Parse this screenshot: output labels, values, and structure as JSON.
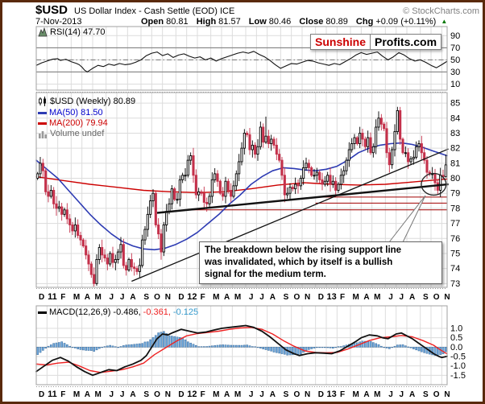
{
  "header": {
    "symbol": "$USD",
    "title": "US Dollar Index - Cash Settle (EOD) ICE",
    "copyright": "© StockCharts.com",
    "date": "7-Nov-2013",
    "quote": {
      "open_label": "Open",
      "open": "80.81",
      "high_label": "High",
      "high": "81.57",
      "low_label": "Low",
      "low": "80.46",
      "close_label": "Close",
      "close": "80.89",
      "chg_label": "Chg",
      "chg": "+0.09 (+0.11%)",
      "direction_symbol": "▲"
    }
  },
  "watermark": {
    "brand": "Sunshine",
    "suffix": "Profits.com"
  },
  "annotation": {
    "line1": "The breakdown below the rising support line",
    "line2": "was invalidated, which by itself is a bullish",
    "line3": "signal for the medium term."
  },
  "colors": {
    "frame_border": "#5A2A0C",
    "grid": "#DCDCDC",
    "panel_border": "#A0A0A0",
    "candle_down": "#C4314B",
    "candle_up_fill": "#FFFFFF",
    "candle_up_stroke": "#000000",
    "ma50": "#2D3BB3",
    "ma50_text": "#0000CC",
    "ma200": "#CC0000",
    "signal": "#EE2222",
    "hist_fill": "#6FA8DC",
    "hist_stroke": "#3D6E9E",
    "macd_value3": "#3399CC",
    "brand_red": "#CC0000",
    "up_green": "#007700",
    "support": "#A00000",
    "volume_gray": "#888888"
  },
  "x_axis": {
    "months": [
      "D",
      "11",
      "F",
      "M",
      "A",
      "M",
      "J",
      "J",
      "A",
      "S",
      "O",
      "N",
      "D",
      "12",
      "F",
      "M",
      "A",
      "M",
      "J",
      "J",
      "A",
      "S",
      "O",
      "N",
      "D",
      "13",
      "F",
      "M",
      "A",
      "M",
      "J",
      "J",
      "A",
      "S",
      "O",
      "N"
    ],
    "bold_indices": [
      1,
      13,
      25
    ],
    "month_start_weeks": [
      0,
      4,
      8,
      13,
      17,
      21,
      26,
      30,
      34,
      39,
      43,
      47,
      52,
      56,
      60,
      65,
      69,
      73,
      78,
      82,
      86,
      91,
      95,
      99,
      104,
      108,
      112,
      117,
      121,
      125,
      130,
      134,
      138,
      143,
      147,
      151
    ],
    "total_weeks": 153
  },
  "chart_data": [
    {
      "type": "line",
      "name": "RSI",
      "legend": "RSI(14) 47.70",
      "y_ticks": [
        90,
        70,
        50,
        30,
        10
      ],
      "bands": {
        "overbought": 70,
        "midline": 50,
        "oversold": 30
      },
      "y_range": [
        0,
        105
      ],
      "points": [
        [
          0,
          41
        ],
        [
          2,
          45
        ],
        [
          4,
          48
        ],
        [
          6,
          51
        ],
        [
          8,
          52
        ],
        [
          9,
          49
        ],
        [
          11,
          51
        ],
        [
          13,
          47
        ],
        [
          15,
          44
        ],
        [
          16,
          42
        ],
        [
          17,
          38
        ],
        [
          18,
          33
        ],
        [
          19,
          30
        ],
        [
          21,
          36
        ],
        [
          23,
          41
        ],
        [
          25,
          39
        ],
        [
          27,
          43
        ],
        [
          29,
          41
        ],
        [
          31,
          44
        ],
        [
          33,
          42
        ],
        [
          35,
          43
        ],
        [
          37,
          46
        ],
        [
          39,
          50
        ],
        [
          41,
          57
        ],
        [
          43,
          61
        ],
        [
          45,
          63
        ],
        [
          47,
          57
        ],
        [
          49,
          60
        ],
        [
          51,
          54
        ],
        [
          53,
          58
        ],
        [
          55,
          60
        ],
        [
          57,
          56
        ],
        [
          59,
          53
        ],
        [
          61,
          55
        ],
        [
          63,
          50
        ],
        [
          65,
          53
        ],
        [
          67,
          48
        ],
        [
          69,
          52
        ],
        [
          71,
          55
        ],
        [
          73,
          58
        ],
        [
          75,
          61
        ],
        [
          77,
          63
        ],
        [
          79,
          61
        ],
        [
          81,
          64
        ],
        [
          83,
          59
        ],
        [
          85,
          55
        ],
        [
          87,
          49
        ],
        [
          89,
          42
        ],
        [
          91,
          36
        ],
        [
          93,
          40
        ],
        [
          95,
          44
        ],
        [
          97,
          43
        ],
        [
          99,
          46
        ],
        [
          101,
          49
        ],
        [
          103,
          48
        ],
        [
          105,
          45
        ],
        [
          107,
          43
        ],
        [
          109,
          41
        ],
        [
          111,
          44
        ],
        [
          113,
          42
        ],
        [
          115,
          47
        ],
        [
          117,
          52
        ],
        [
          119,
          58
        ],
        [
          121,
          62
        ],
        [
          123,
          59
        ],
        [
          125,
          61
        ],
        [
          127,
          63
        ],
        [
          129,
          56
        ],
        [
          131,
          50
        ],
        [
          133,
          55
        ],
        [
          135,
          62
        ],
        [
          137,
          58
        ],
        [
          139,
          52
        ],
        [
          141,
          48
        ],
        [
          143,
          50
        ],
        [
          145,
          46
        ],
        [
          147,
          41
        ],
        [
          149,
          37
        ],
        [
          151,
          42
        ],
        [
          153,
          47.7
        ]
      ]
    },
    {
      "type": "candlestick",
      "name": "USD-weekly",
      "legend": "$USD (Weekly) 80.89",
      "volume_legend": "Volume undef",
      "y_ticks": [
        85,
        84,
        83,
        82,
        81,
        80,
        79,
        78,
        77,
        76,
        75,
        74,
        73
      ],
      "y_range": [
        72.75,
        85.7
      ],
      "first_open": 80.0,
      "closes": [
        80.3,
        81.0,
        80.5,
        79.1,
        78.8,
        79.2,
        78.3,
        78.0,
        78.1,
        77.6,
        77.9,
        77.3,
        76.9,
        76.5,
        76.9,
        76.2,
        75.9,
        75.5,
        74.9,
        74.3,
        73.6,
        73.0,
        74.6,
        75.4,
        74.9,
        74.7,
        74.3,
        75.0,
        74.4,
        74.6,
        75.1,
        75.6,
        74.2,
        73.9,
        74.6,
        74.1,
        74.0,
        73.8,
        74.2,
        75.9,
        76.6,
        77.6,
        78.5,
        79.0,
        76.9,
        76.3,
        75.1,
        76.9,
        77.8,
        78.3,
        79.3,
        78.6,
        78.6,
        79.9,
        80.2,
        80.2,
        81.2,
        81.5,
        80.2,
        78.9,
        79.1,
        79.0,
        78.4,
        78.3,
        78.8,
        79.9,
        80.3,
        79.8,
        79.0,
        78.8,
        79.8,
        79.2,
        78.8,
        79.5,
        80.3,
        81.1,
        82.0,
        83.0,
        82.9,
        81.9,
        82.2,
        81.6,
        82.1,
        83.4,
        82.4,
        82.8,
        82.3,
        82.6,
        82.2,
        81.6,
        81.2,
        80.2,
        78.9,
        79.0,
        79.4,
        79.3,
        79.6,
        79.5,
        80.0,
        80.7,
        81.0,
        80.7,
        80.2,
        80.2,
        80.4,
        79.9,
        79.6,
        79.8,
        80.2,
        79.6,
        79.8,
        79.2,
        79.6,
        80.2,
        80.5,
        81.2,
        81.9,
        82.3,
        82.7,
        82.3,
        83.0,
        82.6,
        82.1,
        82.7,
        81.7,
        82.1,
        83.4,
        84.0,
        83.6,
        83.3,
        81.7,
        80.9,
        81.9,
        83.1,
        84.5,
        82.6,
        81.7,
        81.7,
        81.1,
        81.3,
        81.4,
        82.1,
        82.3,
        81.7,
        81.2,
        80.4,
        80.3,
        80.3,
        79.7,
        79.2,
        80.2,
        80.1,
        80.89
      ],
      "wick_overrides": {
        "21": {
          "l": 72.7
        },
        "85": {
          "h": 84.1
        },
        "127": {
          "h": 84.45
        },
        "134": {
          "h": 84.75
        },
        "152": {
          "h": 81.57,
          "l": 80.05
        }
      },
      "last_week_quote": {
        "open": 80.81,
        "high": 81.57,
        "low": 80.46,
        "close": 80.89
      },
      "ma50": {
        "label": "MA(50) 81.50",
        "points": [
          [
            0,
            81.2
          ],
          [
            4,
            80.6
          ],
          [
            8,
            80.0
          ],
          [
            12,
            79.2
          ],
          [
            16,
            78.4
          ],
          [
            20,
            77.6
          ],
          [
            24,
            76.9
          ],
          [
            28,
            76.3
          ],
          [
            32,
            75.8
          ],
          [
            36,
            75.5
          ],
          [
            40,
            75.3
          ],
          [
            44,
            75.25
          ],
          [
            48,
            75.35
          ],
          [
            52,
            75.6
          ],
          [
            56,
            75.95
          ],
          [
            60,
            76.4
          ],
          [
            64,
            77.0
          ],
          [
            68,
            77.6
          ],
          [
            72,
            78.3
          ],
          [
            76,
            78.9
          ],
          [
            80,
            79.6
          ],
          [
            84,
            80.1
          ],
          [
            88,
            80.5
          ],
          [
            92,
            80.7
          ],
          [
            96,
            80.65
          ],
          [
            100,
            80.55
          ],
          [
            104,
            80.5
          ],
          [
            108,
            80.6
          ],
          [
            112,
            80.8
          ],
          [
            116,
            81.2
          ],
          [
            120,
            81.7
          ],
          [
            124,
            82.0
          ],
          [
            128,
            82.2
          ],
          [
            132,
            82.3
          ],
          [
            136,
            82.35
          ],
          [
            140,
            82.25
          ],
          [
            144,
            82.05
          ],
          [
            148,
            81.8
          ],
          [
            153,
            81.5
          ]
        ]
      },
      "ma200": {
        "label": "MA(200) 79.94",
        "points": [
          [
            0,
            80.1
          ],
          [
            10,
            79.85
          ],
          [
            20,
            79.6
          ],
          [
            30,
            79.4
          ],
          [
            40,
            79.2
          ],
          [
            50,
            79.1
          ],
          [
            60,
            79.05
          ],
          [
            70,
            79.1
          ],
          [
            80,
            79.3
          ],
          [
            90,
            79.55
          ],
          [
            100,
            79.7
          ],
          [
            110,
            79.6
          ],
          [
            120,
            79.55
          ],
          [
            130,
            79.6
          ],
          [
            140,
            79.75
          ],
          [
            148,
            79.88
          ],
          [
            153,
            79.94
          ]
        ]
      },
      "trendlines": [
        {
          "w1": 35.5,
          "p1": 73.15,
          "w2": 153.5,
          "p2": 81.95,
          "width": 1.3
        },
        {
          "w1": 45,
          "p1": 77.7,
          "w2": 153.5,
          "p2": 79.6,
          "width": 2.4
        }
      ],
      "support_levels": [
        {
          "price": 78.75,
          "from_week": 104
        },
        {
          "price": 78.35,
          "from_week": 104
        },
        {
          "price": 77.9,
          "from_week": 58
        }
      ],
      "ellipse": {
        "week": 147.5,
        "price": 79.6,
        "rx_weeks": 4.6,
        "ry_price": 0.72
      }
    },
    {
      "type": "macd",
      "name": "MACD",
      "legend": "MACD(12,26,9)",
      "values": [
        "-0.486,",
        "-0.361,",
        "-0.125"
      ],
      "y_ticks": [
        "1.0",
        "0.5",
        "0.0",
        "-0.5",
        "-1.0",
        "-1.5"
      ],
      "y_tick_values": [
        1.0,
        0.5,
        0.0,
        -0.5,
        -1.0,
        -1.5
      ],
      "y_range": [
        -2.0,
        2.2
      ],
      "macd_points": [
        [
          0,
          -1.3
        ],
        [
          3,
          -1.0
        ],
        [
          6,
          -0.7
        ],
        [
          9,
          -0.55
        ],
        [
          12,
          -0.75
        ],
        [
          15,
          -1.05
        ],
        [
          18,
          -1.3
        ],
        [
          21,
          -1.5
        ],
        [
          24,
          -1.35
        ],
        [
          27,
          -1.2
        ],
        [
          30,
          -1.25
        ],
        [
          33,
          -1.05
        ],
        [
          36,
          -0.9
        ],
        [
          39,
          -0.7
        ],
        [
          41,
          -0.45
        ],
        [
          43,
          0.0
        ],
        [
          45,
          0.45
        ],
        [
          47,
          0.7
        ],
        [
          49,
          0.65
        ],
        [
          51,
          0.78
        ],
        [
          54,
          0.95
        ],
        [
          57,
          0.85
        ],
        [
          60,
          0.75
        ],
        [
          63,
          0.8
        ],
        [
          66,
          0.9
        ],
        [
          69,
          1.0
        ],
        [
          72,
          1.05
        ],
        [
          75,
          1.1
        ],
        [
          78,
          1.15
        ],
        [
          81,
          1.05
        ],
        [
          84,
          0.85
        ],
        [
          87,
          0.55
        ],
        [
          90,
          0.2
        ],
        [
          93,
          -0.15
        ],
        [
          96,
          -0.35
        ],
        [
          98,
          -0.45
        ],
        [
          101,
          -0.35
        ],
        [
          104,
          -0.3
        ],
        [
          107,
          -0.32
        ],
        [
          110,
          -0.35
        ],
        [
          113,
          -0.2
        ],
        [
          116,
          0.05
        ],
        [
          119,
          0.3
        ],
        [
          121,
          0.5
        ],
        [
          124,
          0.65
        ],
        [
          127,
          0.6
        ],
        [
          129,
          0.5
        ],
        [
          131,
          0.45
        ],
        [
          134,
          0.7
        ],
        [
          136,
          0.75
        ],
        [
          138,
          0.6
        ],
        [
          140,
          0.45
        ],
        [
          142,
          0.25
        ],
        [
          144,
          0.05
        ],
        [
          146,
          -0.15
        ],
        [
          148,
          -0.35
        ],
        [
          150,
          -0.5
        ],
        [
          151,
          -0.55
        ],
        [
          153,
          -0.486
        ]
      ],
      "signal_points": [
        [
          0,
          -0.9
        ],
        [
          4,
          -0.95
        ],
        [
          8,
          -0.85
        ],
        [
          12,
          -0.8
        ],
        [
          16,
          -1.0
        ],
        [
          20,
          -1.25
        ],
        [
          24,
          -1.35
        ],
        [
          28,
          -1.28
        ],
        [
          32,
          -1.2
        ],
        [
          36,
          -1.05
        ],
        [
          40,
          -0.85
        ],
        [
          44,
          -0.4
        ],
        [
          48,
          -0.05
        ],
        [
          52,
          0.3
        ],
        [
          56,
          0.6
        ],
        [
          60,
          0.72
        ],
        [
          64,
          0.78
        ],
        [
          68,
          0.85
        ],
        [
          72,
          0.95
        ],
        [
          76,
          1.02
        ],
        [
          80,
          1.05
        ],
        [
          84,
          0.95
        ],
        [
          88,
          0.7
        ],
        [
          92,
          0.35
        ],
        [
          96,
          0.05
        ],
        [
          100,
          -0.2
        ],
        [
          104,
          -0.28
        ],
        [
          108,
          -0.3
        ],
        [
          112,
          -0.28
        ],
        [
          116,
          -0.1
        ],
        [
          120,
          0.12
        ],
        [
          124,
          0.35
        ],
        [
          128,
          0.5
        ],
        [
          132,
          0.55
        ],
        [
          136,
          0.62
        ],
        [
          140,
          0.55
        ],
        [
          144,
          0.35
        ],
        [
          148,
          0.1
        ],
        [
          150,
          -0.1
        ],
        [
          153,
          -0.361
        ]
      ]
    }
  ]
}
